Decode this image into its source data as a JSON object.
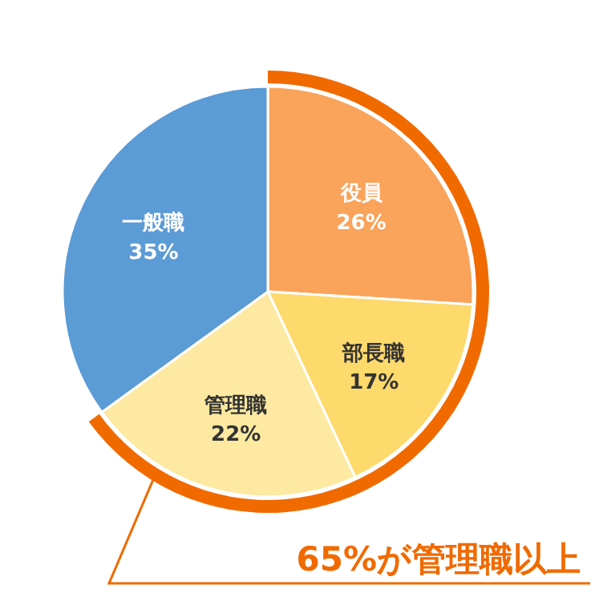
{
  "chart_data": {
    "type": "pie",
    "categories": [
      "役員",
      "部長職",
      "管理職",
      "一般職"
    ],
    "values": [
      26,
      17,
      22,
      35
    ],
    "colors": [
      "#f9a35b",
      "#fed96c",
      "#fde9a1",
      "#5b9bd6"
    ],
    "value_labels": [
      "26%",
      "17%",
      "22%",
      "35%"
    ],
    "annotations": [
      "65%が管理職以上"
    ]
  }
}
